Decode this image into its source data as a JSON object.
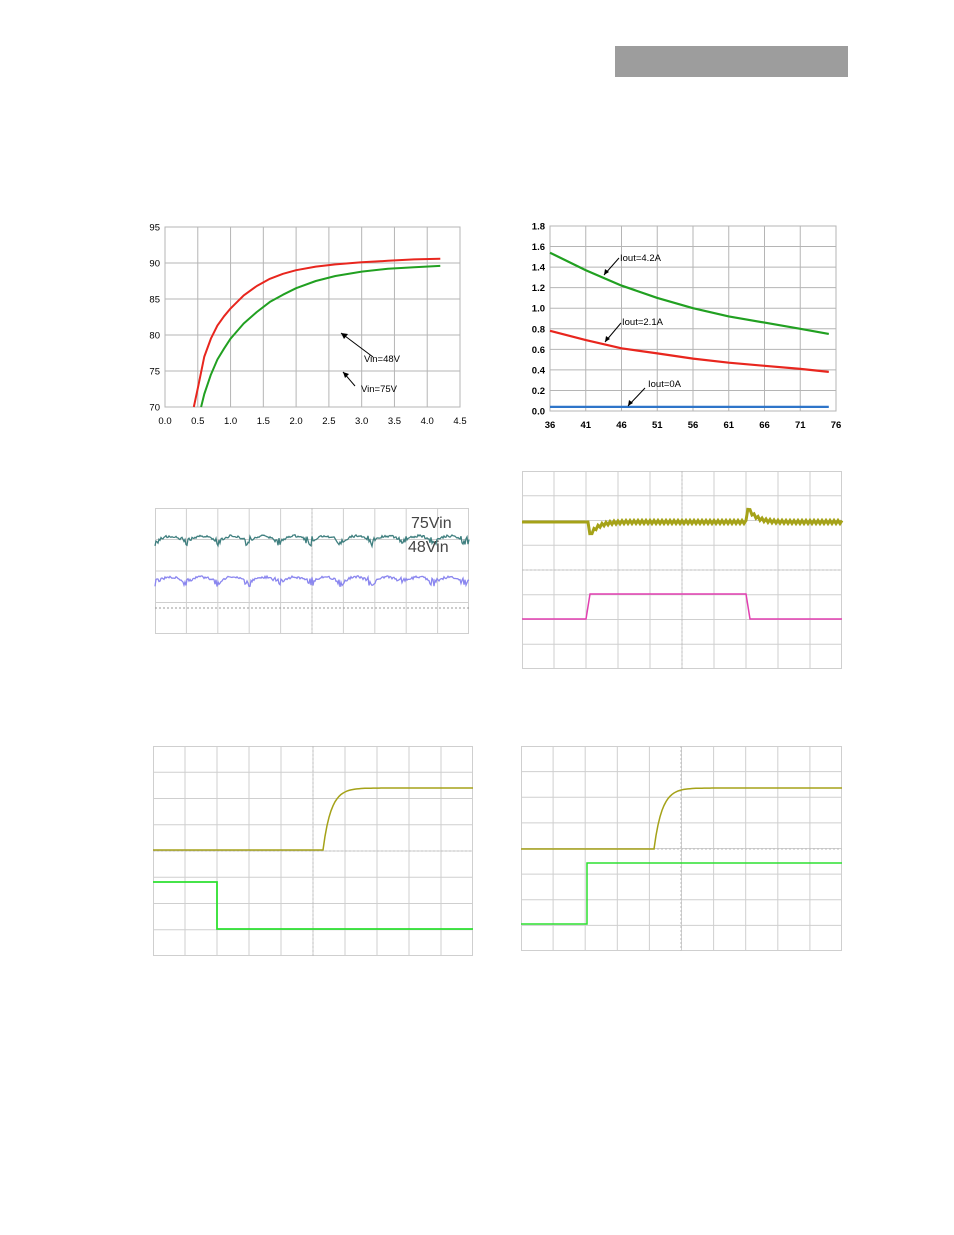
{
  "colors": {
    "red": "#e8261e",
    "green": "#21a021",
    "blue": "#2e75c9",
    "teal": "#3f7f7f",
    "violet": "#8a86ef",
    "olive": "#a5a218",
    "magenta": "#e23fb0",
    "lime": "#2de030",
    "grid": "#b5b5b5",
    "scope_grid": "#cfcfcf"
  },
  "chart_data": [
    {
      "type": "line",
      "id": "efficiency",
      "title": "",
      "xlabel": "",
      "ylabel": "",
      "xlim": [
        0.0,
        4.5
      ],
      "ylim": [
        70,
        95
      ],
      "x_ticks": [
        "0.0",
        "0.5",
        "1.0",
        "1.5",
        "2.0",
        "2.5",
        "3.0",
        "3.5",
        "4.0",
        "4.5"
      ],
      "y_ticks": [
        "70",
        "75",
        "80",
        "85",
        "90",
        "95"
      ],
      "grid": true,
      "series": [
        {
          "name": "Vin=48V",
          "color": "red",
          "x": [
            0.44,
            0.5,
            0.6,
            0.7,
            0.8,
            0.9,
            1.0,
            1.2,
            1.4,
            1.6,
            1.8,
            2.0,
            2.3,
            2.6,
            3.0,
            3.4,
            3.8,
            4.2
          ],
          "y": [
            70.0,
            72.6,
            77.0,
            79.5,
            81.3,
            82.6,
            83.7,
            85.5,
            86.8,
            87.8,
            88.5,
            89.0,
            89.5,
            89.8,
            90.1,
            90.3,
            90.5,
            90.6
          ]
        },
        {
          "name": "Vin=75V",
          "color": "green",
          "x": [
            0.55,
            0.6,
            0.7,
            0.8,
            0.9,
            1.0,
            1.2,
            1.4,
            1.6,
            1.8,
            2.0,
            2.3,
            2.6,
            3.0,
            3.4,
            3.8,
            4.2
          ],
          "y": [
            70.0,
            71.8,
            74.5,
            76.6,
            78.1,
            79.5,
            81.6,
            83.2,
            84.6,
            85.6,
            86.5,
            87.5,
            88.2,
            88.8,
            89.2,
            89.4,
            89.6
          ]
        }
      ],
      "annotations": [
        "Vin=48V",
        "Vin=75V"
      ]
    },
    {
      "type": "line",
      "id": "power-dissipation",
      "title": "",
      "xlabel": "",
      "ylabel": "",
      "xlim": [
        36,
        76
      ],
      "ylim": [
        0.0,
        1.8
      ],
      "x_ticks": [
        "36",
        "41",
        "46",
        "51",
        "56",
        "61",
        "66",
        "71",
        "76"
      ],
      "y_ticks": [
        "0.0",
        "0.2",
        "0.4",
        "0.6",
        "0.8",
        "1.0",
        "1.2",
        "1.4",
        "1.6",
        "1.8"
      ],
      "grid": true,
      "series": [
        {
          "name": "Iout=4.2A",
          "color": "green",
          "x": [
            36,
            41,
            46,
            51,
            56,
            61,
            66,
            71,
            75
          ],
          "y": [
            1.54,
            1.37,
            1.22,
            1.1,
            1.0,
            0.92,
            0.86,
            0.8,
            0.75
          ]
        },
        {
          "name": "Iout=2.1A",
          "color": "red",
          "x": [
            36,
            41,
            46,
            51,
            56,
            61,
            66,
            71,
            75
          ],
          "y": [
            0.78,
            0.69,
            0.61,
            0.56,
            0.51,
            0.47,
            0.44,
            0.41,
            0.38
          ]
        },
        {
          "name": "Iout=0A",
          "color": "blue",
          "x": [
            36,
            41,
            46,
            51,
            56,
            61,
            66,
            71,
            75
          ],
          "y": [
            0.04,
            0.04,
            0.04,
            0.04,
            0.04,
            0.04,
            0.04,
            0.04,
            0.04
          ]
        }
      ],
      "annotations": [
        "Iout=4.2A",
        "Iout=2.1A",
        "Iout=0A"
      ]
    },
    {
      "type": "line",
      "id": "ripple-scope",
      "labels": [
        "75Vin",
        "48Vin"
      ],
      "series": [
        {
          "name": "75Vin",
          "color": "teal"
        },
        {
          "name": "48Vin",
          "color": "violet"
        }
      ]
    },
    {
      "type": "line",
      "id": "transient-scope",
      "series": [
        {
          "color": "olive"
        },
        {
          "color": "magenta"
        }
      ]
    },
    {
      "type": "line",
      "id": "startup-scope-1",
      "series": [
        {
          "color": "olive"
        },
        {
          "color": "lime"
        }
      ]
    },
    {
      "type": "line",
      "id": "startup-scope-2",
      "series": [
        {
          "color": "olive"
        },
        {
          "color": "lime"
        }
      ]
    }
  ]
}
